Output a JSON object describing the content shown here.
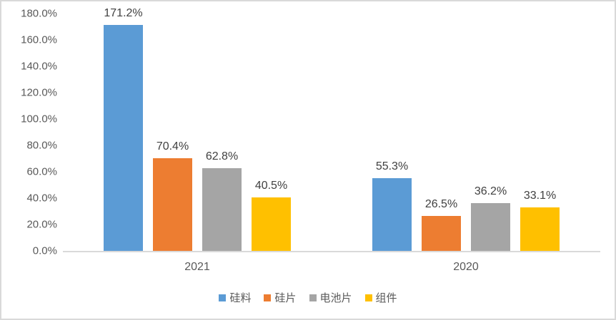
{
  "chart_data": {
    "type": "bar",
    "title": "",
    "xlabel": "",
    "ylabel": "",
    "categories": [
      "2021",
      "2020"
    ],
    "series": [
      {
        "name": "硅料",
        "color": "#5B9BD5",
        "values": [
          171.2,
          55.3
        ],
        "labels": [
          "171.2%",
          "55.3%"
        ]
      },
      {
        "name": "硅片",
        "color": "#ED7D31",
        "values": [
          70.4,
          26.5
        ],
        "labels": [
          "70.4%",
          "26.5%"
        ]
      },
      {
        "name": "电池片",
        "color": "#A5A5A5",
        "values": [
          62.8,
          36.2
        ],
        "labels": [
          "62.8%",
          "36.2%"
        ]
      },
      {
        "name": "组件",
        "color": "#FFC000",
        "values": [
          40.5,
          33.1
        ],
        "labels": [
          "40.5%",
          "33.1%"
        ]
      }
    ],
    "y_axis": {
      "min": 0,
      "max": 180,
      "step": 20,
      "tick_labels": [
        "0.0%",
        "20.0%",
        "40.0%",
        "60.0%",
        "80.0%",
        "100.0%",
        "120.0%",
        "140.0%",
        "160.0%",
        "180.0%"
      ]
    },
    "legend": {
      "position": "bottom",
      "items": [
        "硅料",
        "硅片",
        "电池片",
        "组件"
      ]
    },
    "grid": false
  },
  "colors": {
    "axis_line": "#D9D9D9",
    "tick_label": "#595959",
    "data_label": "#404040",
    "frame_border": "#D9D9D9",
    "background": "#FFFFFF"
  }
}
